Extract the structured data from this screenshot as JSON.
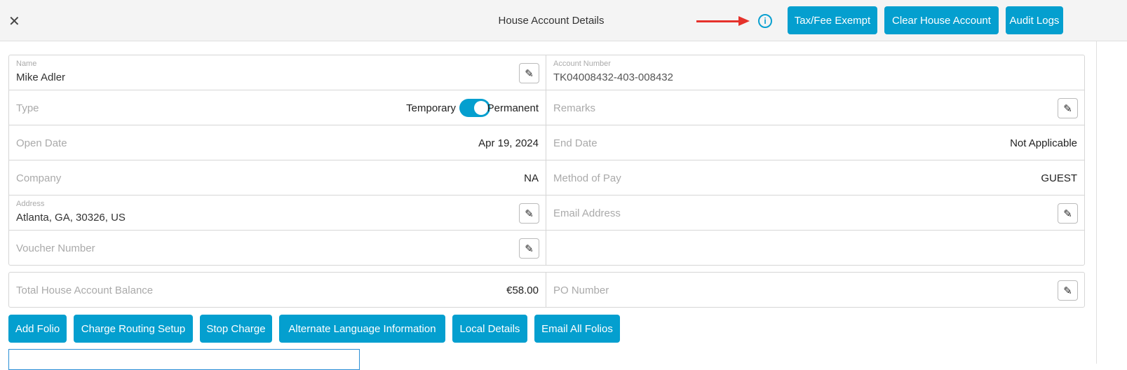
{
  "header": {
    "title": "House Account Details",
    "buttons": {
      "tax": "Tax/Fee Exempt",
      "clear": "Clear House Account",
      "audit": "Audit Logs"
    },
    "info_icon": "i"
  },
  "details": {
    "name": {
      "label": "Name",
      "value": "Mike Adler"
    },
    "account_number": {
      "label": "Account Number",
      "value": "TK04008432-403-008432"
    },
    "type": {
      "label": "Type",
      "left": "Temporary",
      "right": "Permanent",
      "toggle_on": true
    },
    "remarks": {
      "label": "Remarks"
    },
    "open_date": {
      "label": "Open Date",
      "value": "Apr 19, 2024"
    },
    "end_date": {
      "label": "End Date",
      "value": "Not Applicable"
    },
    "company": {
      "label": "Company",
      "value": "NA"
    },
    "method_of_pay": {
      "label": "Method of Pay",
      "value": "GUEST"
    },
    "address": {
      "label": "Address",
      "value": "Atlanta, GA, 30326, US"
    },
    "email": {
      "label": "Email Address"
    },
    "voucher": {
      "label": "Voucher Number"
    }
  },
  "balance": {
    "label": "Total House Account Balance",
    "value": "€58.00",
    "po_label": "PO Number"
  },
  "actions": [
    "Add Folio",
    "Charge Routing Setup",
    "Stop Charge",
    "Alternate Language Information",
    "Local Details",
    "Email All Folios"
  ],
  "colors": {
    "accent": "#049fcf",
    "arrow": "#e5322b"
  }
}
